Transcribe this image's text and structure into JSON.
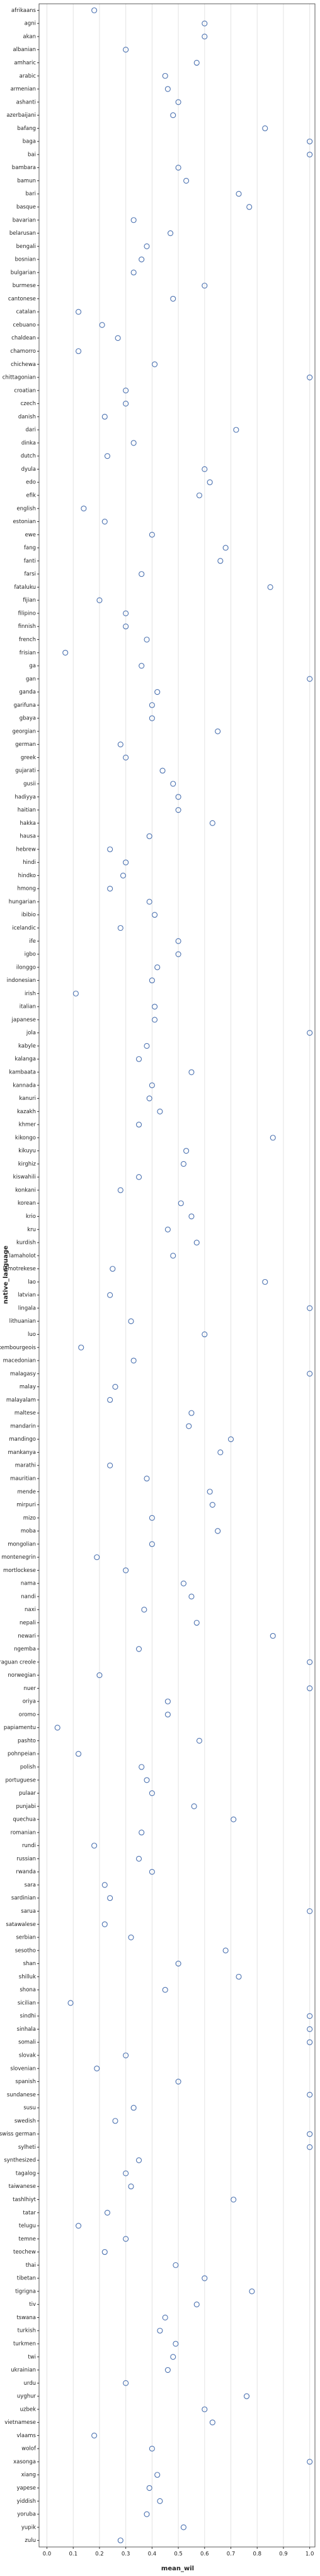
{
  "chart_data": {
    "type": "strip",
    "xlabel": "mean_wil",
    "ylabel": "native_language",
    "color": "#4c72b0",
    "xlim": [
      -0.03,
      1.02
    ],
    "xticks": [
      {
        "value": 0,
        "label": "0.0"
      },
      {
        "value": 0.1,
        "label": "0.1"
      },
      {
        "value": 0.2,
        "label": "0.2"
      },
      {
        "value": 0.3,
        "label": "0.3"
      },
      {
        "value": 0.4,
        "label": "0.4"
      },
      {
        "value": 0.5,
        "label": "0.5"
      },
      {
        "value": 0.6,
        "label": "0.6"
      },
      {
        "value": 0.7,
        "label": "0.7"
      },
      {
        "value": 0.8,
        "label": "0.8"
      },
      {
        "value": 0.9,
        "label": "0.9"
      },
      {
        "value": 1,
        "label": "1.0"
      }
    ],
    "grid": true,
    "categories": [
      "afrikaans",
      "agni",
      "akan",
      "albanian",
      "amharic",
      "arabic",
      "armenian",
      "ashanti",
      "azerbaijani",
      "bafang",
      "baga",
      "bai",
      "bambara",
      "bamun",
      "bari",
      "basque",
      "bavarian",
      "belarusan",
      "bengali",
      "bosnian",
      "bulgarian",
      "burmese",
      "cantonese",
      "catalan",
      "cebuano",
      "chaldean",
      "chamorro",
      "chichewa",
      "chittagonian",
      "croatian",
      "czech",
      "danish",
      "dari",
      "dinka",
      "dutch",
      "dyula",
      "edo",
      "efik",
      "english",
      "estonian",
      "ewe",
      "fang",
      "fanti",
      "farsi",
      "fataluku",
      "fijian",
      "filipino",
      "finnish",
      "french",
      "frisian",
      "ga",
      "gan",
      "ganda",
      "garifuna",
      "gbaya",
      "georgian",
      "german",
      "greek",
      "gujarati",
      "gusii",
      "hadiyya",
      "haitian",
      "hakka",
      "hausa",
      "hebrew",
      "hindi",
      "hindko",
      "hmong",
      "hungarian",
      "ibibio",
      "icelandic",
      "ife",
      "igbo",
      "ilonggo",
      "indonesian",
      "irish",
      "italian",
      "japanese",
      "jola",
      "kabyle",
      "kalanga",
      "kambaata",
      "kannada",
      "kanuri",
      "kazakh",
      "khmer",
      "kikongo",
      "kikuyu",
      "kirghiz",
      "kiswahili",
      "konkani",
      "korean",
      "krio",
      "kru",
      "kurdish",
      "lamaholot",
      "lamotrekese",
      "lao",
      "latvian",
      "lingala",
      "lithuanian",
      "luo",
      "luxembourgeois",
      "macedonian",
      "malagasy",
      "malay",
      "malayalam",
      "maltese",
      "mandarin",
      "mandingo",
      "mankanya",
      "marathi",
      "mauritian",
      "mende",
      "mirpuri",
      "mizo",
      "moba",
      "mongolian",
      "montenegrin",
      "mortlockese",
      "nama",
      "nandi",
      "naxi",
      "nepali",
      "newari",
      "ngemba",
      "nicaraguan creole",
      "norwegian",
      "nuer",
      "oriya",
      "oromo",
      "papiamentu",
      "pashto",
      "pohnpeian",
      "polish",
      "portuguese",
      "pulaar",
      "punjabi",
      "quechua",
      "romanian",
      "rundi",
      "russian",
      "rwanda",
      "sara",
      "sardinian",
      "sarua",
      "satawalese",
      "serbian",
      "sesotho",
      "shan",
      "shilluk",
      "shona",
      "sicilian",
      "sindhi",
      "sinhala",
      "somali",
      "slovak",
      "slovenian",
      "spanish",
      "sundanese",
      "susu",
      "swedish",
      "swiss german",
      "sylheti",
      "synthesized",
      "tagalog",
      "taiwanese",
      "tashlhiyt",
      "tatar",
      "telugu",
      "temne",
      "teochew",
      "thai",
      "tibetan",
      "tigrigna",
      "tiv",
      "tswana",
      "turkish",
      "turkmen",
      "twi",
      "ukrainian",
      "urdu",
      "uyghur",
      "uzbek",
      "vietnamese",
      "vlaams",
      "wolof",
      "xasonga",
      "xiang",
      "yapese",
      "yiddish",
      "yoruba",
      "yupik",
      "zulu"
    ],
    "values": [
      0.18,
      0.6,
      0.6,
      0.3,
      0.57,
      0.45,
      0.46,
      0.5,
      0.48,
      0.83,
      1.0,
      1.0,
      0.5,
      0.53,
      0.73,
      0.77,
      0.33,
      0.47,
      0.38,
      0.36,
      0.33,
      0.6,
      0.48,
      0.12,
      0.21,
      0.27,
      0.12,
      0.41,
      1.0,
      0.3,
      0.3,
      0.22,
      0.72,
      0.33,
      0.23,
      0.6,
      0.62,
      0.58,
      0.14,
      0.22,
      0.4,
      0.68,
      0.66,
      0.36,
      0.85,
      0.2,
      0.3,
      0.3,
      0.38,
      0.07,
      0.36,
      1.0,
      0.42,
      0.4,
      0.4,
      0.65,
      0.28,
      0.3,
      0.44,
      0.48,
      0.5,
      0.5,
      0.63,
      0.39,
      0.24,
      0.3,
      0.29,
      0.24,
      0.39,
      0.41,
      0.28,
      0.5,
      0.5,
      0.42,
      0.4,
      0.11,
      0.41,
      0.41,
      1.0,
      0.38,
      0.35,
      0.55,
      0.4,
      0.39,
      0.43,
      0.35,
      0.86,
      0.53,
      0.52,
      0.35,
      0.28,
      0.51,
      0.55,
      0.46,
      0.57,
      0.48,
      0.25,
      0.83,
      0.24,
      1.0,
      0.32,
      0.6,
      0.13,
      0.33,
      1.0,
      0.26,
      0.24,
      0.55,
      0.54,
      0.7,
      0.66,
      0.24,
      0.38,
      0.62,
      0.63,
      0.4,
      0.65,
      0.4,
      0.19,
      0.3,
      0.52,
      0.55,
      0.37,
      0.57,
      0.86,
      0.35,
      1.0,
      0.2,
      1.0,
      0.46,
      0.46,
      0.04,
      0.58,
      0.12,
      0.36,
      0.38,
      0.4,
      0.56,
      0.71,
      0.36,
      0.18,
      0.35,
      0.4,
      0.22,
      0.24,
      1.0,
      0.22,
      0.32,
      0.68,
      0.5,
      0.73,
      0.45,
      0.09,
      1.0,
      1.0,
      1.0,
      0.3,
      0.19,
      0.5,
      1.0,
      0.33,
      0.26,
      1.0,
      1.0,
      0.35,
      0.3,
      0.32,
      0.71,
      0.23,
      0.12,
      0.3,
      0.22,
      0.49,
      0.6,
      0.78,
      0.57,
      0.45,
      0.43,
      0.49,
      0.48,
      0.46,
      0.3,
      0.76,
      0.6,
      0.63,
      0.18,
      0.4,
      1.0,
      0.42,
      0.39,
      0.43,
      0.38,
      0.52,
      0.28
    ]
  }
}
